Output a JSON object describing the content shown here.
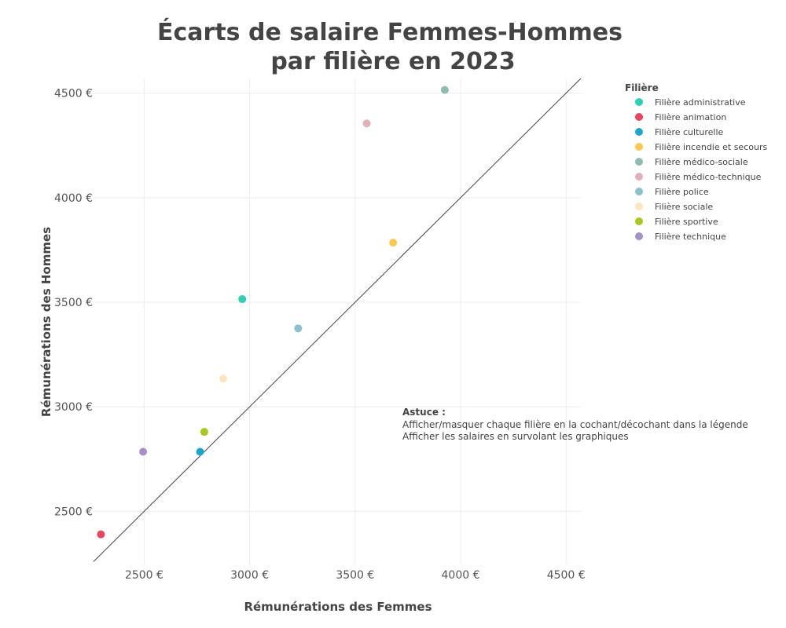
{
  "chart_data": {
    "type": "scatter",
    "title_lines": [
      "Écarts de salaire Femmes-Hommes",
      "par filière en 2023"
    ],
    "xlabel": "Rémunérations des Femmes",
    "ylabel": "Rémunérations des Hommes",
    "xlim": [
      2260,
      4570
    ],
    "ylim": [
      2250,
      4570
    ],
    "x_ticks": [
      2500,
      3000,
      3500,
      4000,
      4500
    ],
    "y_ticks": [
      2500,
      3000,
      3500,
      4000,
      4500
    ],
    "x_tick_labels": [
      "2500 €",
      "3000 €",
      "3500 €",
      "4000 €",
      "4500 €"
    ],
    "y_tick_labels": [
      "2500 €",
      "3000 €",
      "3500 €",
      "4000 €",
      "4500 €"
    ],
    "reference_line": "y = x",
    "grid": true,
    "legend": {
      "title": "Filière",
      "position": "right"
    },
    "series": [
      {
        "name": "Filière administrative",
        "color": "#2dcfb5",
        "x": 2965,
        "y": 3515
      },
      {
        "name": "Filière animation",
        "color": "#e8455e",
        "x": 2295,
        "y": 2390
      },
      {
        "name": "Filière culturelle",
        "color": "#1ba7c9",
        "x": 2765,
        "y": 2785
      },
      {
        "name": "Filière incendie et secours",
        "color": "#fcc84f",
        "x": 3680,
        "y": 3785
      },
      {
        "name": "Filière médico-sociale",
        "color": "#8fbcb0",
        "x": 3925,
        "y": 4515
      },
      {
        "name": "Filière médico-technique",
        "color": "#e2b0bc",
        "x": 3555,
        "y": 4355
      },
      {
        "name": "Filière police",
        "color": "#8cc0cc",
        "x": 3230,
        "y": 3375
      },
      {
        "name": "Filière sociale",
        "color": "#fde5bf",
        "x": 2875,
        "y": 3135
      },
      {
        "name": "Filière sportive",
        "color": "#a8c81f",
        "x": 2785,
        "y": 2880
      },
      {
        "name": "Filière technique",
        "color": "#a590c8",
        "x": 2495,
        "y": 2785
      }
    ]
  },
  "note": {
    "heading": "Astuce :",
    "lines": [
      "Afficher/masquer chaque filière en la cochant/décochant dans la légende",
      "Afficher les salaires en survolant les graphiques"
    ]
  }
}
